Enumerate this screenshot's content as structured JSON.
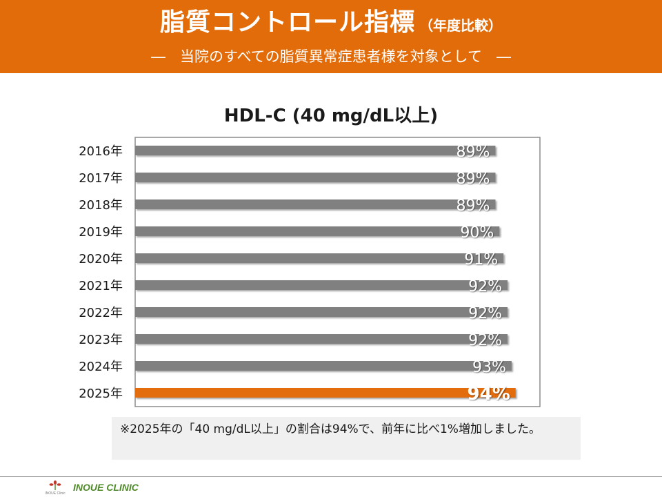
{
  "header": {
    "title": "脂質コントロール指標",
    "title_suffix": "（年度比較）",
    "subtitle": "―　当院のすべての脂質異常症患者様を対象として　―"
  },
  "chart_data": {
    "type": "bar",
    "orientation": "horizontal",
    "title": "HDL-C (40 mg/dL以上)",
    "categories": [
      "2016年",
      "2017年",
      "2018年",
      "2019年",
      "2020年",
      "2021年",
      "2022年",
      "2023年",
      "2024年",
      "2025年"
    ],
    "values": [
      89,
      89,
      89,
      90,
      91,
      92,
      92,
      92,
      93,
      94
    ],
    "data_labels": [
      "89%",
      "89%",
      "89%",
      "90%",
      "91%",
      "92%",
      "92%",
      "92%",
      "93%",
      "94%"
    ],
    "xlim": [
      0,
      100
    ],
    "grid": false,
    "legend": "none",
    "bar_color": "#808080",
    "highlight_color": "#e36c0a",
    "highlight_category": "2025年"
  },
  "note": {
    "text": "※2025年の「40 mg/dL以上」の割合は94%で、前年に比べ1%増加しました。"
  },
  "footer": {
    "clinic_name": "INOUE CLINIC",
    "logo_text": "INOUE Clinic"
  },
  "colors": {
    "header_bg": "#e36c0a",
    "note_bg": "#f0f0f0",
    "footer_green": "#4f8a2a"
  }
}
